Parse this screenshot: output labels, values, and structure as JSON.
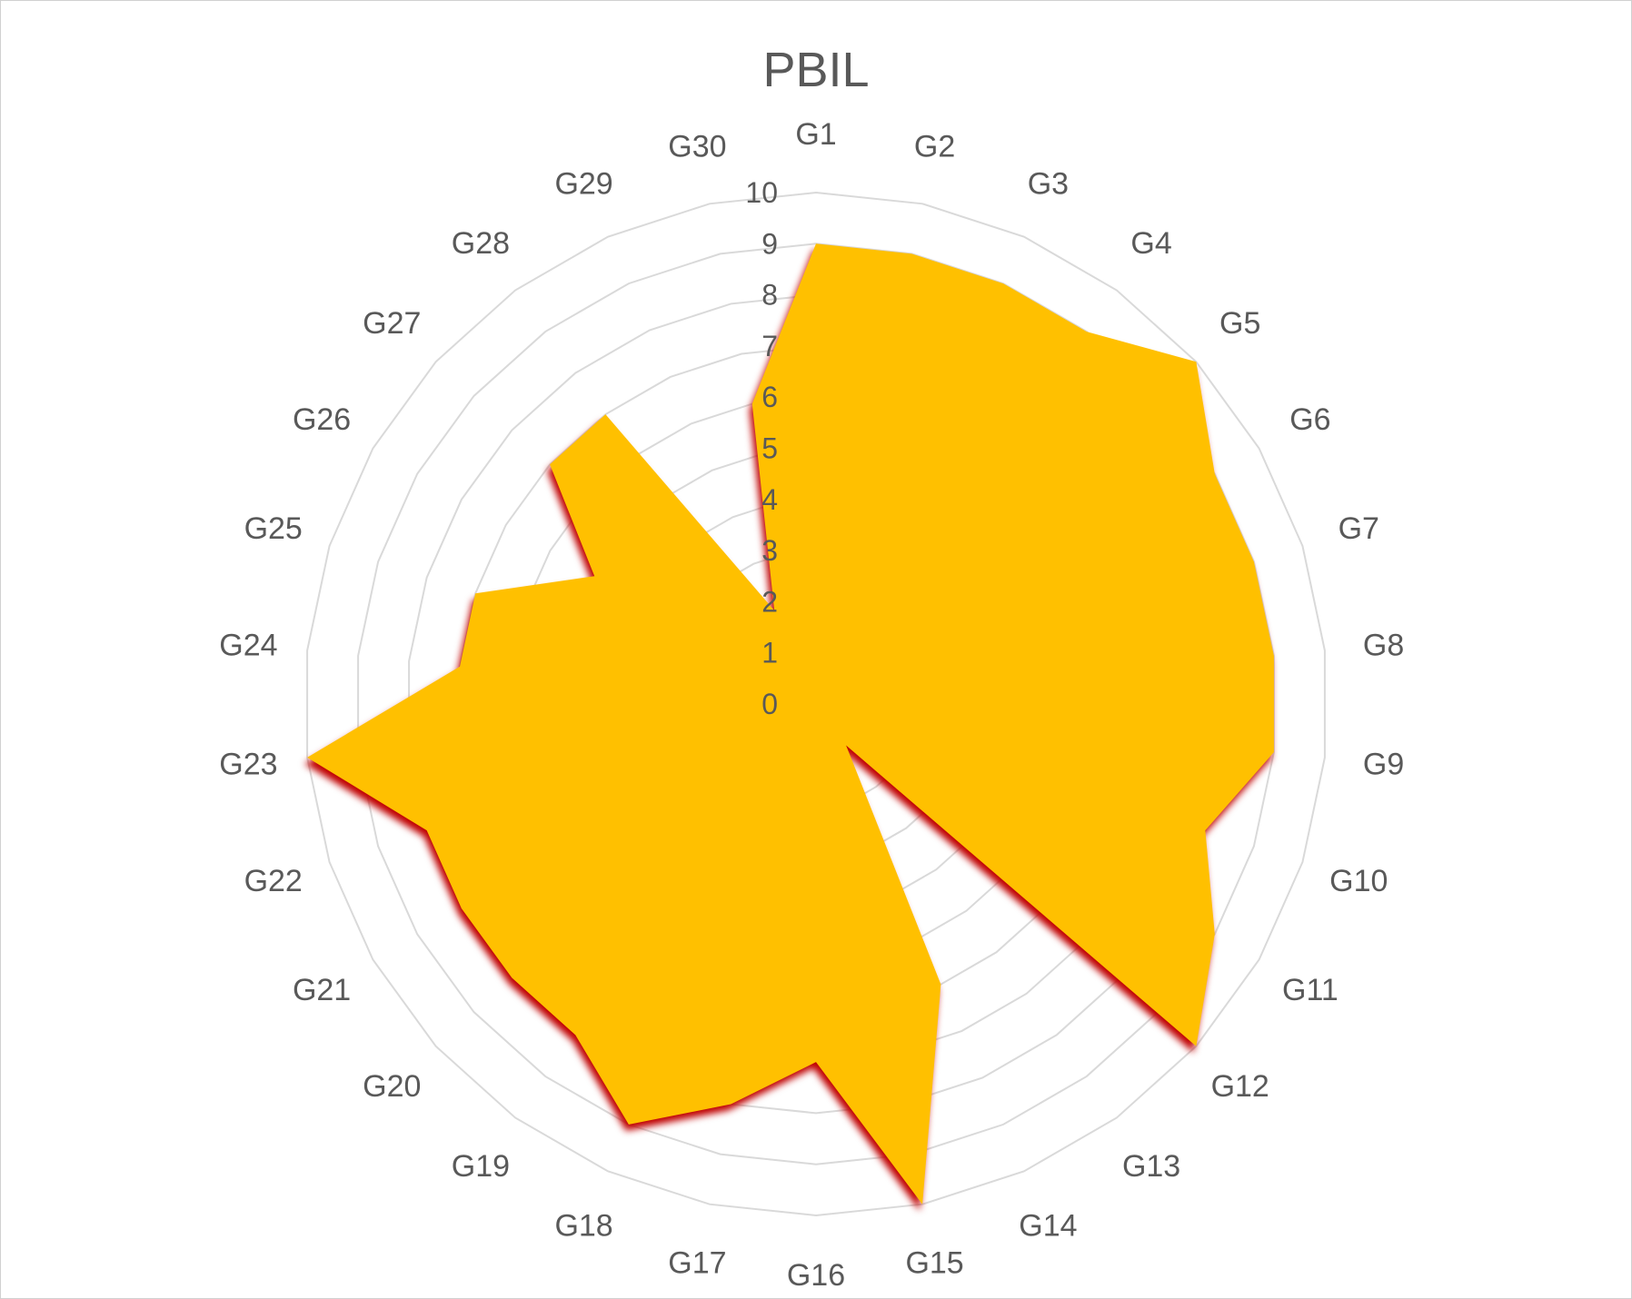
{
  "colors": {
    "fill": "#FFC000",
    "shadow": "#C00000",
    "grid": "#D9D9D9",
    "text": "#595959"
  },
  "chart_data": {
    "type": "radar",
    "title": "PBIL",
    "categories": [
      "G1",
      "G2",
      "G3",
      "G4",
      "G5",
      "G6",
      "G7",
      "G8",
      "G9",
      "G10",
      "G11",
      "G12",
      "G13",
      "G14",
      "G15",
      "G16",
      "G17",
      "G18",
      "G19",
      "G20",
      "G21",
      "G22",
      "G23",
      "G24",
      "G25",
      "G26",
      "G27",
      "G28",
      "G29",
      "G30"
    ],
    "series": [
      {
        "values": [
          9,
          9,
          9,
          9,
          10,
          9,
          9,
          9,
          9,
          8,
          9,
          10,
          1,
          6,
          10,
          7,
          8,
          9,
          8,
          8,
          8,
          8,
          10,
          7,
          7,
          5,
          7,
          7,
          2,
          6
        ]
      }
    ],
    "rlim": [
      0,
      10
    ],
    "ticks": [
      "0",
      "1",
      "2",
      "3",
      "4",
      "5",
      "6",
      "7",
      "8",
      "9",
      "10"
    ],
    "grid": true,
    "legend": false
  }
}
